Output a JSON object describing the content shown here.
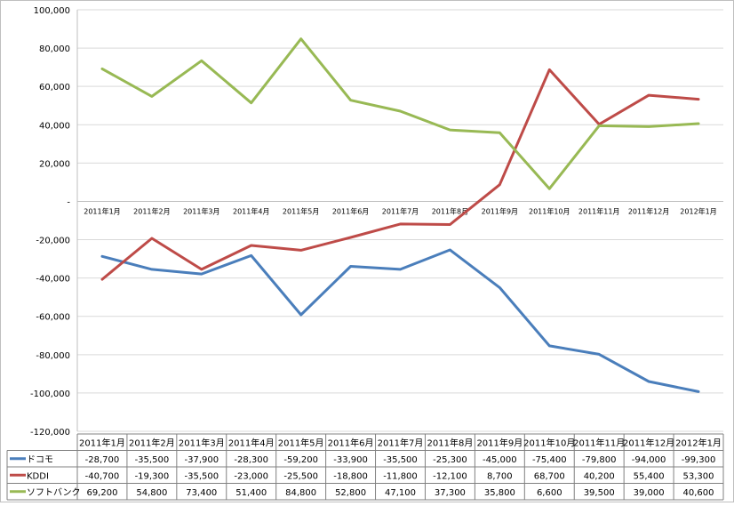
{
  "chart_data": {
    "type": "line",
    "categories": [
      "2011年1月",
      "2011年2月",
      "2011年3月",
      "2011年4月",
      "2011年5月",
      "2011年6月",
      "2011年7月",
      "2011年8月",
      "2011年9月",
      "2011年10月",
      "2011年11月",
      "2011年12月",
      "2012年1月"
    ],
    "series": [
      {
        "name": "ドコモ",
        "color": "#4A7EBB",
        "values": [
          -28700,
          -35500,
          -37900,
          -28300,
          -59200,
          -33900,
          -35500,
          -25300,
          -45000,
          -75400,
          -79800,
          -94000,
          -99300
        ],
        "labels": [
          "-28,700",
          "-35,500",
          "-37,900",
          "-28,300",
          "-59,200",
          "-33,900",
          "-35,500",
          "-25,300",
          "-45,000",
          "-75,400",
          "-79,800",
          "-94,000",
          "-99,300"
        ]
      },
      {
        "name": "KDDI",
        "color": "#BE4B48",
        "values": [
          -40700,
          -19300,
          -35500,
          -23000,
          -25500,
          -18800,
          -11800,
          -12100,
          8700,
          68700,
          40200,
          55400,
          53300
        ],
        "labels": [
          "-40,700",
          "-19,300",
          "-35,500",
          "-23,000",
          "-25,500",
          "-18,800",
          "-11,800",
          "-12,100",
          "8,700",
          "68,700",
          "40,200",
          "55,400",
          "53,300"
        ]
      },
      {
        "name": "ソフトバンク",
        "color": "#98B954",
        "values": [
          69200,
          54800,
          73400,
          51400,
          84800,
          52800,
          47100,
          37300,
          35800,
          6600,
          39500,
          39000,
          40600
        ],
        "labels": [
          "69,200",
          "54,800",
          "73,400",
          "51,400",
          "84,800",
          "52,800",
          "47,100",
          "37,300",
          "35,800",
          "6,600",
          "39,500",
          "39,000",
          "40,600"
        ]
      }
    ],
    "yticks": [
      100000,
      80000,
      60000,
      40000,
      20000,
      0,
      -20000,
      -40000,
      -60000,
      -80000,
      -100000,
      -120000
    ],
    "ytick_labels": [
      "100,000",
      "80,000",
      "60,000",
      "40,000",
      "20,000",
      "-",
      "-20,000",
      "-40,000",
      "-60,000",
      "-80,000",
      "-100,000",
      "-120,000"
    ],
    "ylim": [
      -120000,
      100000
    ],
    "grid": true,
    "legend": "data-table-bottom"
  }
}
